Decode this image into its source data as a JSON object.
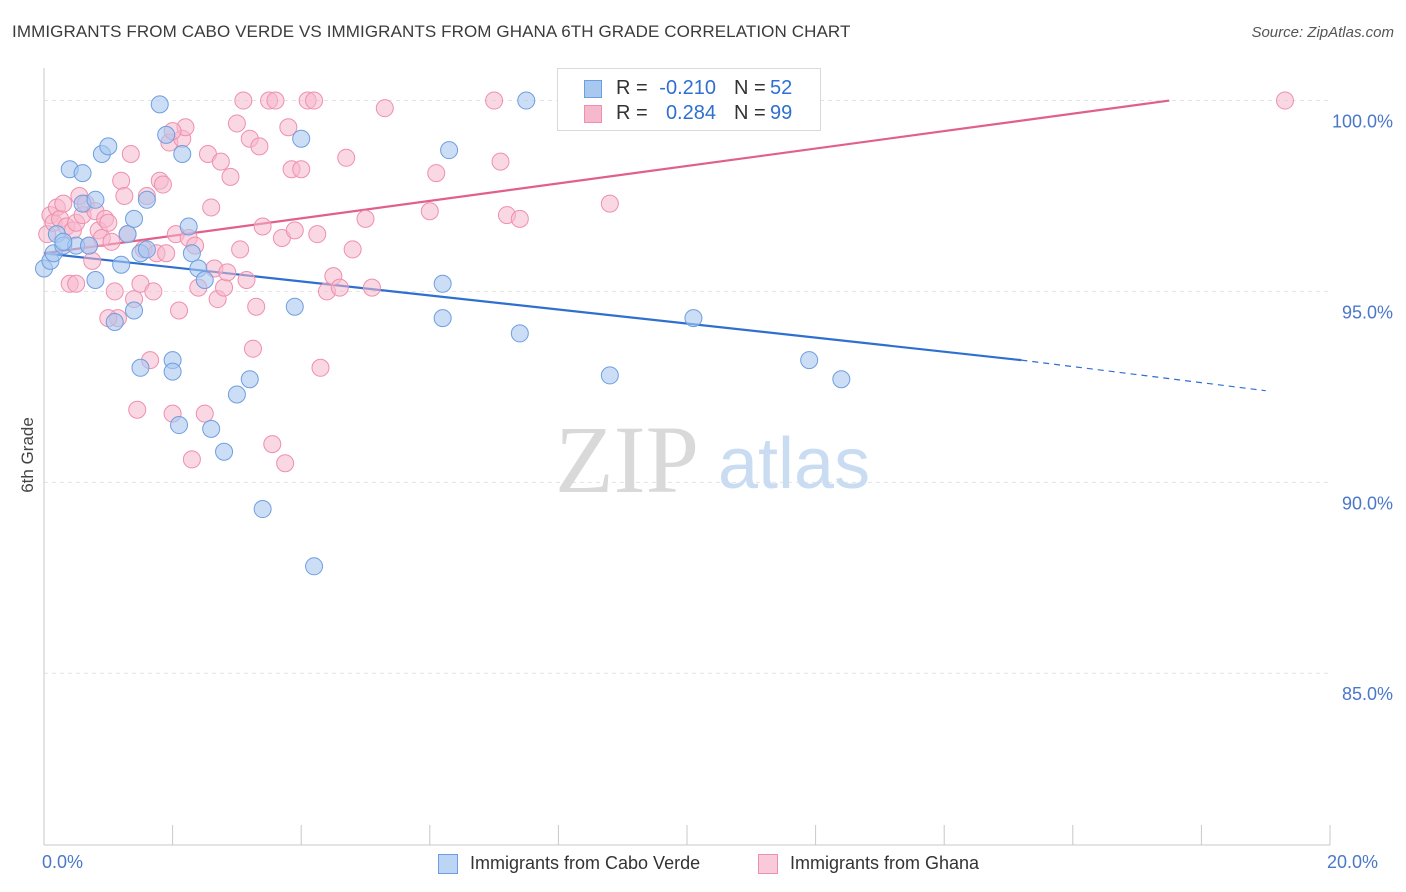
{
  "header": {
    "title": "IMMIGRANTS FROM CABO VERDE VS IMMIGRANTS FROM GHANA 6TH GRADE CORRELATION CHART",
    "source": "Source: ZipAtlas.com"
  },
  "watermark": {
    "zip": "ZIP",
    "atlas": "atlas"
  },
  "legend_box": {
    "rows": [
      {
        "r_label": "R =",
        "r_value": "-0.210",
        "n_label": "N =",
        "n_value": "52"
      },
      {
        "r_label": "R =",
        "r_value": "0.284",
        "n_label": "N =",
        "n_value": "99"
      }
    ]
  },
  "bottom_legend": {
    "cabo": "Immigrants from Cabo Verde",
    "ghana": "Immigrants from Ghana"
  },
  "x_axis": {
    "min_label": "0.0%",
    "max_label": "20.0%"
  },
  "colors": {
    "cabo_fill": "#a9c8f0",
    "cabo_stroke": "#6f9ee0",
    "cabo_line": "#2e6fd0",
    "ghana_fill": "#f6b8cc",
    "ghana_stroke": "#ef8fae",
    "ghana_line": "#e0608a"
  },
  "chart_data": {
    "type": "scatter",
    "title": "IMMIGRANTS FROM CABO VERDE VS IMMIGRANTS FROM GHANA 6TH GRADE CORRELATION CHART",
    "xlabel": "",
    "ylabel": "6th Grade",
    "xlim": [
      0,
      20
    ],
    "ylim": [
      80.5,
      100.8
    ],
    "y_ticks": [
      85,
      90,
      95,
      100
    ],
    "y_tick_labels": [
      "85.0%",
      "90.0%",
      "95.0%",
      "100.0%"
    ],
    "x_tick_labels": [
      "0.0%",
      "20.0%"
    ],
    "grid": true,
    "legend_placement": "top-center",
    "series": [
      {
        "name": "Immigrants from Cabo Verde",
        "stats": {
          "R": -0.21,
          "N": 52
        },
        "trend": {
          "x0": 0,
          "y0": 96.0,
          "x1": 15.2,
          "y1": 93.2,
          "dash_to_x": 19.0,
          "dash_to_y": 92.4
        },
        "points": [
          [
            0.0,
            95.6
          ],
          [
            0.1,
            95.8
          ],
          [
            0.15,
            96.0
          ],
          [
            0.2,
            96.5
          ],
          [
            0.3,
            96.2
          ],
          [
            0.4,
            98.2
          ],
          [
            0.5,
            96.2
          ],
          [
            0.6,
            98.1
          ],
          [
            0.7,
            96.2
          ],
          [
            0.8,
            95.3
          ],
          [
            0.9,
            98.6
          ],
          [
            1.1,
            94.2
          ],
          [
            1.2,
            95.7
          ],
          [
            1.3,
            96.5
          ],
          [
            1.4,
            96.9
          ],
          [
            1.4,
            94.5
          ],
          [
            1.5,
            96.0
          ],
          [
            1.6,
            97.4
          ],
          [
            1.0,
            98.8
          ],
          [
            1.5,
            93.0
          ],
          [
            1.6,
            96.1
          ],
          [
            1.8,
            99.9
          ],
          [
            1.9,
            99.1
          ],
          [
            2.0,
            93.2
          ],
          [
            2.0,
            92.9
          ],
          [
            2.1,
            91.5
          ],
          [
            2.15,
            98.6
          ],
          [
            2.3,
            96.0
          ],
          [
            2.25,
            96.7
          ],
          [
            2.4,
            95.6
          ],
          [
            2.5,
            95.3
          ],
          [
            2.6,
            91.4
          ],
          [
            2.8,
            90.8
          ],
          [
            3.0,
            92.3
          ],
          [
            3.2,
            92.7
          ],
          [
            3.4,
            89.3
          ],
          [
            3.9,
            94.6
          ],
          [
            4.0,
            99.0
          ],
          [
            4.2,
            87.8
          ],
          [
            6.2,
            95.2
          ],
          [
            6.2,
            94.3
          ],
          [
            6.3,
            98.7
          ],
          [
            7.4,
            93.9
          ],
          [
            7.5,
            100.0
          ],
          [
            8.5,
            100.0
          ],
          [
            8.8,
            92.8
          ],
          [
            10.1,
            94.3
          ],
          [
            11.9,
            93.2
          ],
          [
            12.4,
            92.7
          ],
          [
            0.6,
            97.3
          ],
          [
            0.8,
            97.4
          ],
          [
            0.3,
            96.3
          ]
        ]
      },
      {
        "name": "Immigrants from Ghana",
        "stats": {
          "R": 0.284,
          "N": 99
        },
        "trend": {
          "x0": 0,
          "y0": 96.0,
          "x1": 17.5,
          "y1": 100.0
        },
        "points": [
          [
            0.05,
            96.5
          ],
          [
            0.1,
            97.0
          ],
          [
            0.15,
            96.8
          ],
          [
            0.2,
            97.2
          ],
          [
            0.25,
            96.9
          ],
          [
            0.3,
            97.3
          ],
          [
            0.35,
            96.7
          ],
          [
            0.4,
            95.2
          ],
          [
            0.45,
            96.6
          ],
          [
            0.5,
            96.8
          ],
          [
            0.55,
            97.5
          ],
          [
            0.6,
            97.0
          ],
          [
            0.65,
            97.3
          ],
          [
            0.7,
            96.2
          ],
          [
            0.75,
            95.8
          ],
          [
            0.8,
            97.1
          ],
          [
            0.85,
            96.6
          ],
          [
            0.9,
            96.4
          ],
          [
            0.95,
            96.9
          ],
          [
            1.0,
            96.8
          ],
          [
            1.05,
            96.3
          ],
          [
            1.1,
            95.0
          ],
          [
            1.15,
            94.3
          ],
          [
            1.2,
            97.9
          ],
          [
            1.25,
            97.5
          ],
          [
            1.3,
            96.5
          ],
          [
            1.35,
            98.6
          ],
          [
            1.4,
            94.8
          ],
          [
            1.45,
            91.9
          ],
          [
            1.5,
            95.2
          ],
          [
            1.55,
            96.1
          ],
          [
            1.6,
            97.5
          ],
          [
            1.65,
            93.2
          ],
          [
            1.7,
            95.0
          ],
          [
            1.75,
            96.0
          ],
          [
            1.8,
            97.9
          ],
          [
            1.85,
            97.8
          ],
          [
            1.9,
            96.0
          ],
          [
            1.95,
            98.9
          ],
          [
            2.0,
            91.8
          ],
          [
            2.05,
            96.5
          ],
          [
            2.1,
            94.5
          ],
          [
            2.15,
            99.0
          ],
          [
            2.2,
            99.3
          ],
          [
            2.25,
            96.4
          ],
          [
            2.3,
            90.6
          ],
          [
            2.35,
            96.2
          ],
          [
            2.4,
            95.1
          ],
          [
            2.5,
            91.8
          ],
          [
            2.55,
            98.6
          ],
          [
            2.6,
            97.2
          ],
          [
            2.65,
            95.6
          ],
          [
            2.7,
            94.8
          ],
          [
            2.75,
            98.4
          ],
          [
            2.8,
            95.1
          ],
          [
            2.85,
            95.5
          ],
          [
            2.9,
            98.0
          ],
          [
            3.0,
            99.4
          ],
          [
            3.05,
            96.1
          ],
          [
            3.1,
            100.0
          ],
          [
            3.15,
            95.3
          ],
          [
            3.2,
            99.0
          ],
          [
            3.25,
            93.5
          ],
          [
            3.3,
            94.6
          ],
          [
            3.35,
            98.8
          ],
          [
            3.4,
            96.7
          ],
          [
            3.5,
            100.0
          ],
          [
            3.55,
            91.0
          ],
          [
            3.6,
            100.0
          ],
          [
            3.7,
            96.4
          ],
          [
            3.75,
            90.5
          ],
          [
            3.8,
            99.3
          ],
          [
            3.85,
            98.2
          ],
          [
            3.9,
            96.6
          ],
          [
            4.0,
            98.2
          ],
          [
            4.1,
            100.0
          ],
          [
            4.2,
            100.0
          ],
          [
            4.25,
            96.5
          ],
          [
            4.3,
            93.0
          ],
          [
            4.4,
            95.0
          ],
          [
            4.5,
            95.4
          ],
          [
            4.6,
            95.1
          ],
          [
            4.7,
            98.5
          ],
          [
            4.8,
            96.1
          ],
          [
            5.0,
            96.9
          ],
          [
            5.1,
            95.1
          ],
          [
            5.3,
            99.8
          ],
          [
            6.0,
            97.1
          ],
          [
            6.1,
            98.1
          ],
          [
            7.0,
            100.0
          ],
          [
            7.1,
            98.4
          ],
          [
            7.2,
            97.0
          ],
          [
            7.4,
            96.9
          ],
          [
            8.4,
            100.0
          ],
          [
            8.8,
            97.3
          ],
          [
            19.3,
            100.0
          ],
          [
            0.5,
            95.2
          ],
          [
            1.0,
            94.3
          ],
          [
            2.0,
            99.2
          ]
        ]
      }
    ]
  }
}
